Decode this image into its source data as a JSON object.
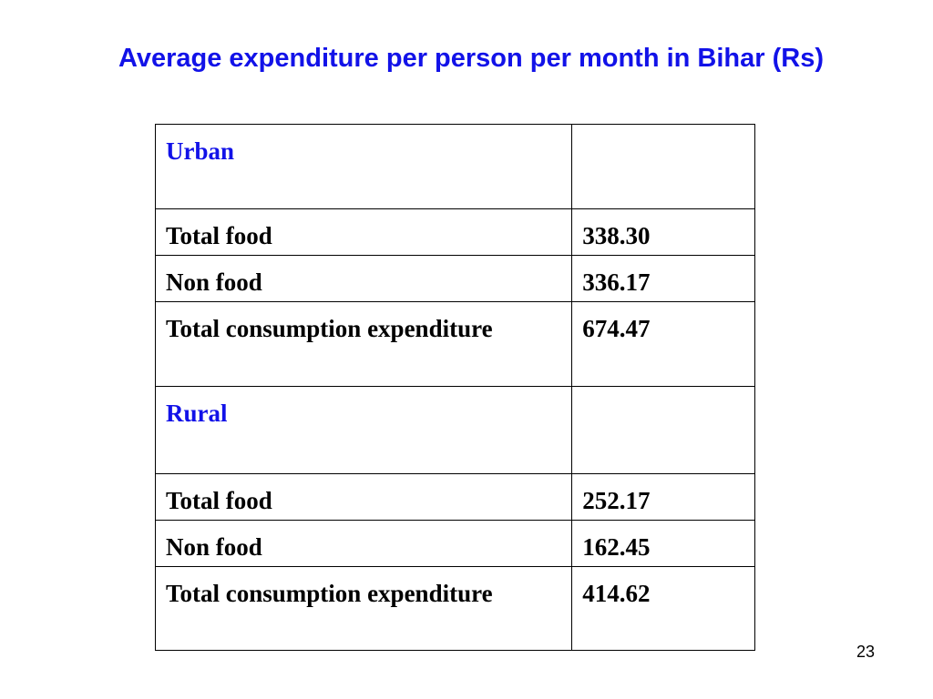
{
  "slide": {
    "title": "Average expenditure per person per month in Bihar (Rs)",
    "page_number": "23"
  },
  "table": {
    "rows": [
      {
        "type": "section",
        "label": "Urban",
        "value": ""
      },
      {
        "type": "single",
        "label": "Total food",
        "value": "338.30"
      },
      {
        "type": "single",
        "label": "Non food",
        "value": "336.17"
      },
      {
        "type": "double",
        "label": "Total consumption expenditure",
        "value": "674.47"
      },
      {
        "type": "section",
        "label": "Rural",
        "value": ""
      },
      {
        "type": "single",
        "label": "Total food",
        "value": "252.17"
      },
      {
        "type": "single",
        "label": "Non food",
        "value": "162.45"
      },
      {
        "type": "double",
        "label": "Total consumption expenditure",
        "value": "414.62"
      }
    ]
  },
  "colors": {
    "accent_blue": "#1212e8",
    "text": "#000000",
    "background": "#ffffff"
  }
}
